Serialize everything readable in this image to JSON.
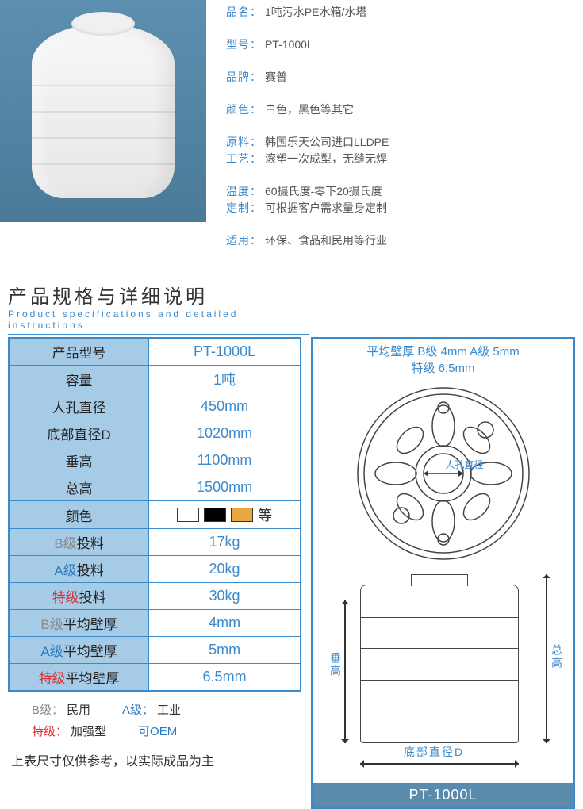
{
  "colors": {
    "accent": "#3B8ACB",
    "header_bg": "#A6CBE7",
    "diagram_footer_bg": "#5A8BAD",
    "grade_b": "#888888",
    "grade_a": "#2B7BBF",
    "grade_s": "#D93030",
    "swatch_white": "#ffffff",
    "swatch_black": "#000000",
    "swatch_gold": "#E8A83E"
  },
  "product_image": {
    "bg_gradient": [
      "#5C8FB0",
      "#4A7A98"
    ],
    "tank_color": "#f0f0f0"
  },
  "info": {
    "rows": [
      [
        {
          "label": "品名：",
          "value": "1吨污水PE水箱/水塔"
        }
      ],
      [
        {
          "label": "型号：",
          "value": "PT-1000L"
        }
      ],
      [
        {
          "label": "品牌：",
          "value": "赛普"
        }
      ],
      [
        {
          "label": "颜色：",
          "value": "白色，黑色等其它"
        }
      ],
      [
        {
          "label": "原料：",
          "value": "韩国乐天公司进口LLDPE"
        },
        {
          "label": "工艺：",
          "value": "滚塑一次成型，无缝无焊"
        }
      ],
      [
        {
          "label": "温度：",
          "value": "60摄氏度-零下20摄氏度"
        },
        {
          "label": "定制：",
          "value": "可根据客户需求量身定制"
        }
      ],
      [
        {
          "label": "适用：",
          "value": "环保、食品和民用等行业"
        }
      ]
    ]
  },
  "spec_header": {
    "title": "产品规格与详细说明",
    "subtitle": "Product specifications and detailed instructions"
  },
  "spec_table": {
    "rows": [
      {
        "label": "产品型号",
        "value": "PT-1000L"
      },
      {
        "label": "容量",
        "value": "1吨"
      },
      {
        "label": "人孔直径",
        "value": "450mm"
      },
      {
        "label": "底部直径D",
        "value": "1020mm"
      },
      {
        "label": "垂高",
        "value": "1100mm"
      },
      {
        "label": "总高",
        "value": "1500mm"
      },
      {
        "label": "颜色",
        "value": "",
        "is_color_row": true,
        "extra": "等"
      },
      {
        "label_prefix": "B级",
        "label_suffix": "投料",
        "prefix_class": "grade-b",
        "value": "17kg"
      },
      {
        "label_prefix": "A级",
        "label_suffix": "投料",
        "prefix_class": "grade-a",
        "value": "20kg"
      },
      {
        "label_prefix": "特级",
        "label_suffix": "投料",
        "prefix_class": "grade-s",
        "value": "30kg"
      },
      {
        "label_prefix": "B级",
        "label_suffix": "平均壁厚",
        "prefix_class": "grade-b",
        "value": "4mm"
      },
      {
        "label_prefix": "A级",
        "label_suffix": "平均壁厚",
        "prefix_class": "grade-a",
        "value": "5mm"
      },
      {
        "label_prefix": "特级",
        "label_suffix": "平均壁厚",
        "prefix_class": "grade-s",
        "value": "6.5mm"
      }
    ]
  },
  "legend": {
    "row1": [
      {
        "prefix": "B级：",
        "prefix_class": "grade-b",
        "text": "民用"
      },
      {
        "prefix": "A级：",
        "prefix_class": "grade-a",
        "text": "工业"
      }
    ],
    "row2": [
      {
        "prefix": "特级：",
        "prefix_class": "grade-s",
        "text": "加强型"
      },
      {
        "prefix": "",
        "prefix_class": "grade-a",
        "text": "可OEM"
      }
    ],
    "note": "上表尺寸仅供参考，以实际成品为主"
  },
  "diagram": {
    "header_line1": "平均壁厚  B级 4mm   A级 5mm",
    "header_line2": "特级 6.5mm",
    "top_view_label": "人孔直径",
    "side_labels": {
      "left": "垂高",
      "right": "总高",
      "bottom": "底部直径D"
    },
    "footer": "PT-1000L",
    "line_color": "#444444"
  }
}
